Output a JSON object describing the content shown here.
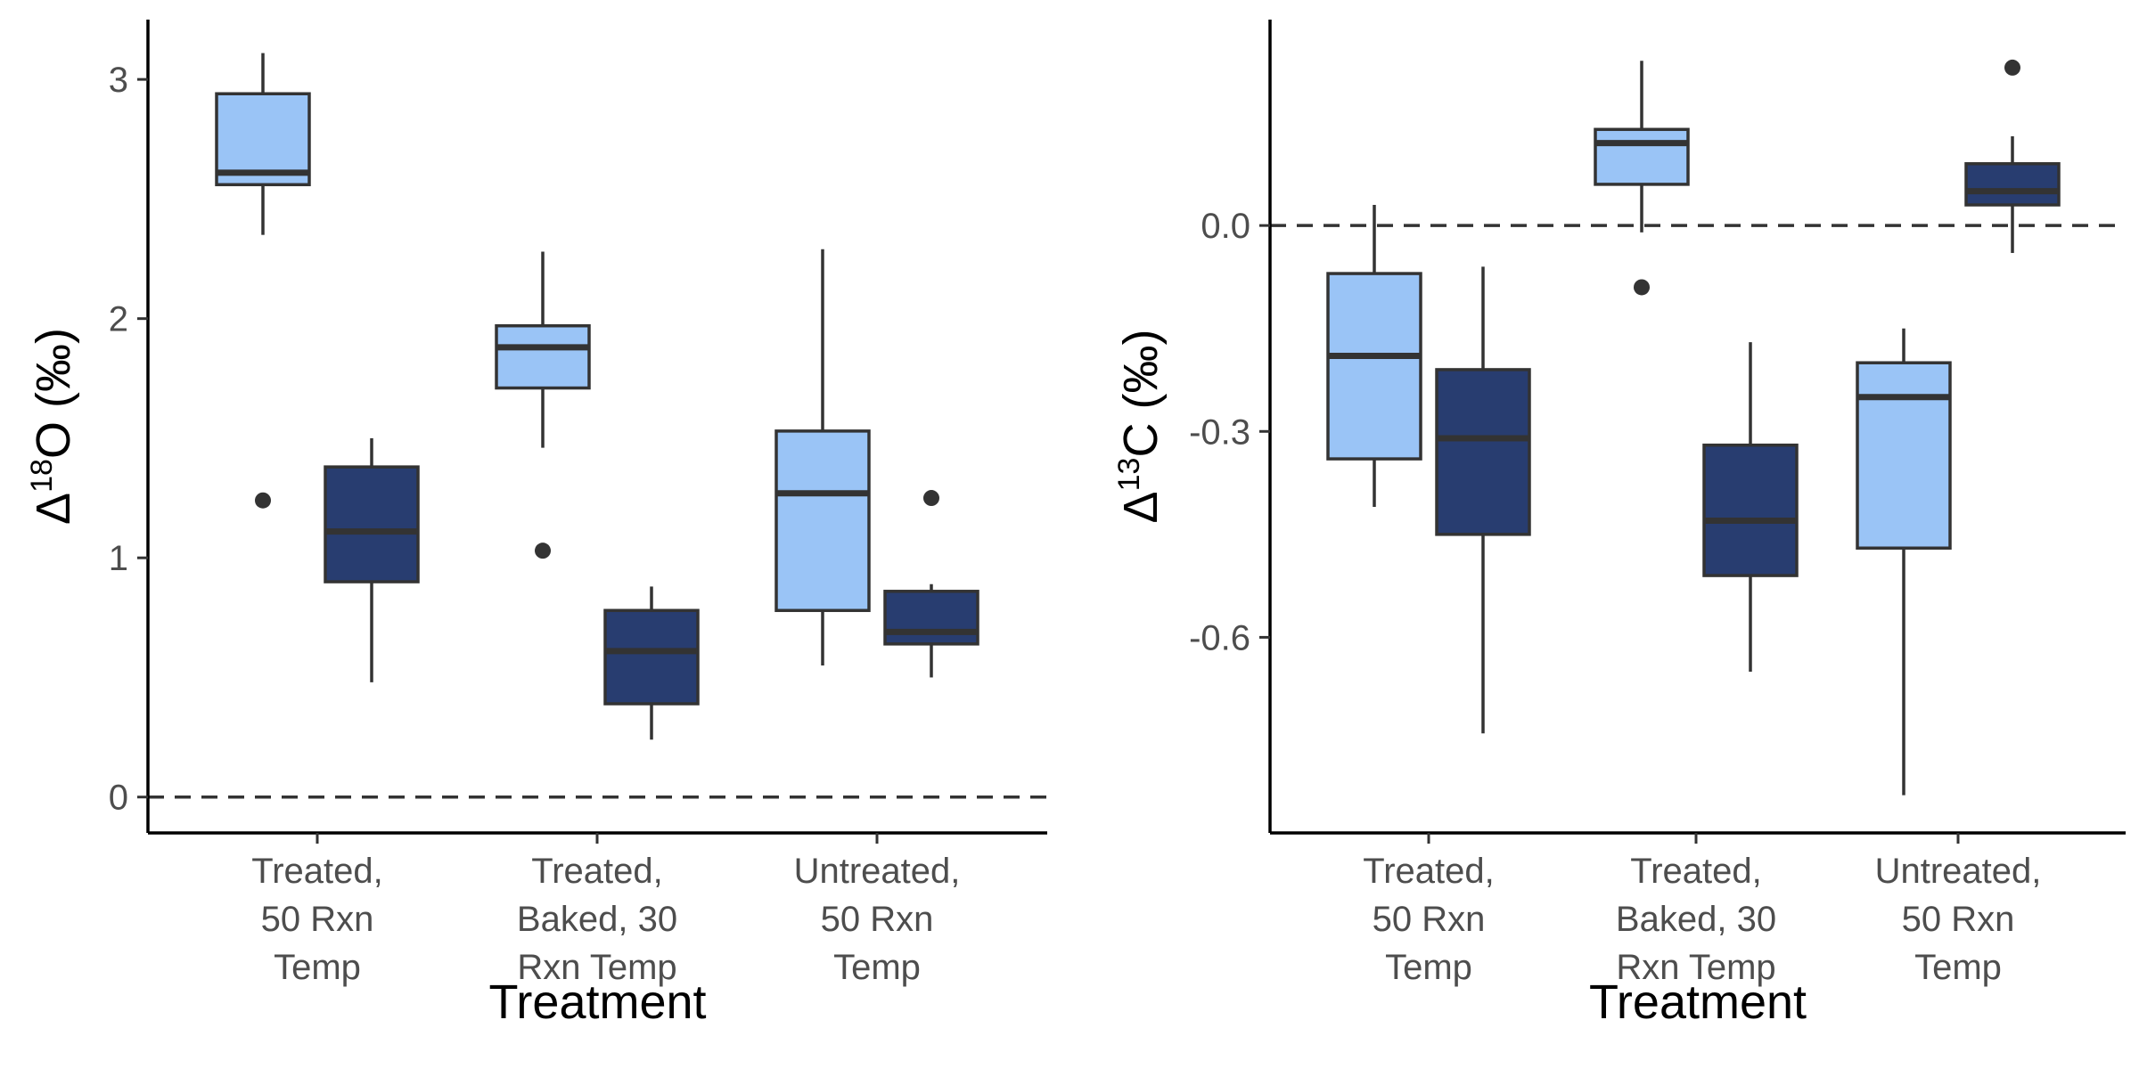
{
  "chart_data": [
    {
      "type": "box",
      "xlabel": "Treatment",
      "ylabel_symbol": "Δ",
      "ylabel_sup": "18",
      "ylabel_rest": "O (‰)",
      "ylim": [
        -0.15,
        3.25
      ],
      "yticks": [
        0,
        1,
        2,
        3
      ],
      "ytick_labels": [
        "0",
        "1",
        "2",
        "3"
      ],
      "reference_line": 0,
      "colors": [
        "#9ac4f6",
        "#283d70"
      ],
      "categories": [
        {
          "label_lines": [
            "Treated,",
            "50 Rxn",
            "Temp"
          ]
        },
        {
          "label_lines": [
            "Treated,",
            "Baked, 30",
            "Rxn Temp"
          ]
        },
        {
          "label_lines": [
            "Untreated,",
            "50 Rxn",
            "Temp"
          ]
        }
      ],
      "groups": [
        [
          {
            "min": 2.35,
            "q1": 2.56,
            "median": 2.61,
            "q3": 2.94,
            "max": 3.11,
            "outliers": [
              1.24
            ]
          },
          {
            "min": 0.48,
            "q1": 0.9,
            "median": 1.11,
            "q3": 1.38,
            "max": 1.5,
            "outliers": []
          }
        ],
        [
          {
            "min": 1.46,
            "q1": 1.71,
            "median": 1.88,
            "q3": 1.97,
            "max": 2.28,
            "outliers": [
              1.03
            ]
          },
          {
            "min": 0.24,
            "q1": 0.39,
            "median": 0.61,
            "q3": 0.78,
            "max": 0.88,
            "outliers": []
          }
        ],
        [
          {
            "min": 0.55,
            "q1": 0.78,
            "median": 1.27,
            "q3": 1.53,
            "max": 2.29,
            "outliers": []
          },
          {
            "min": 0.5,
            "q1": 0.64,
            "median": 0.69,
            "q3": 0.86,
            "max": 0.89,
            "outliers": [
              1.25
            ]
          }
        ]
      ]
    },
    {
      "type": "box",
      "xlabel": "Treatment",
      "ylabel_symbol": "Δ",
      "ylabel_sup": "13",
      "ylabel_rest": "C (‰)",
      "ylim": [
        -0.885,
        0.3
      ],
      "yticks": [
        0.0,
        -0.3,
        -0.6
      ],
      "ytick_labels": [
        "0.0",
        "-0.3",
        "-0.6"
      ],
      "reference_line": 0,
      "colors": [
        "#9ac4f6",
        "#283d70"
      ],
      "categories": [
        {
          "label_lines": [
            "Treated,",
            "50 Rxn",
            "Temp"
          ]
        },
        {
          "label_lines": [
            "Treated,",
            "Baked, 30",
            "Rxn Temp"
          ]
        },
        {
          "label_lines": [
            "Untreated,",
            "50 Rxn",
            "Temp"
          ]
        }
      ],
      "groups": [
        [
          {
            "min": -0.41,
            "q1": -0.34,
            "median": -0.19,
            "q3": -0.07,
            "max": 0.03,
            "outliers": []
          },
          {
            "min": -0.74,
            "q1": -0.45,
            "median": -0.31,
            "q3": -0.21,
            "max": -0.06,
            "outliers": []
          }
        ],
        [
          {
            "min": -0.01,
            "q1": 0.06,
            "median": 0.12,
            "q3": 0.14,
            "max": 0.24,
            "outliers": [
              -0.09
            ]
          },
          {
            "min": -0.65,
            "q1": -0.51,
            "median": -0.43,
            "q3": -0.32,
            "max": -0.17,
            "outliers": []
          }
        ],
        [
          {
            "min": -0.83,
            "q1": -0.47,
            "median": -0.25,
            "q3": -0.2,
            "max": -0.15,
            "outliers": []
          },
          {
            "min": -0.04,
            "q1": 0.03,
            "median": 0.05,
            "q3": 0.09,
            "max": 0.13,
            "outliers": [
              0.23
            ]
          }
        ]
      ]
    }
  ]
}
